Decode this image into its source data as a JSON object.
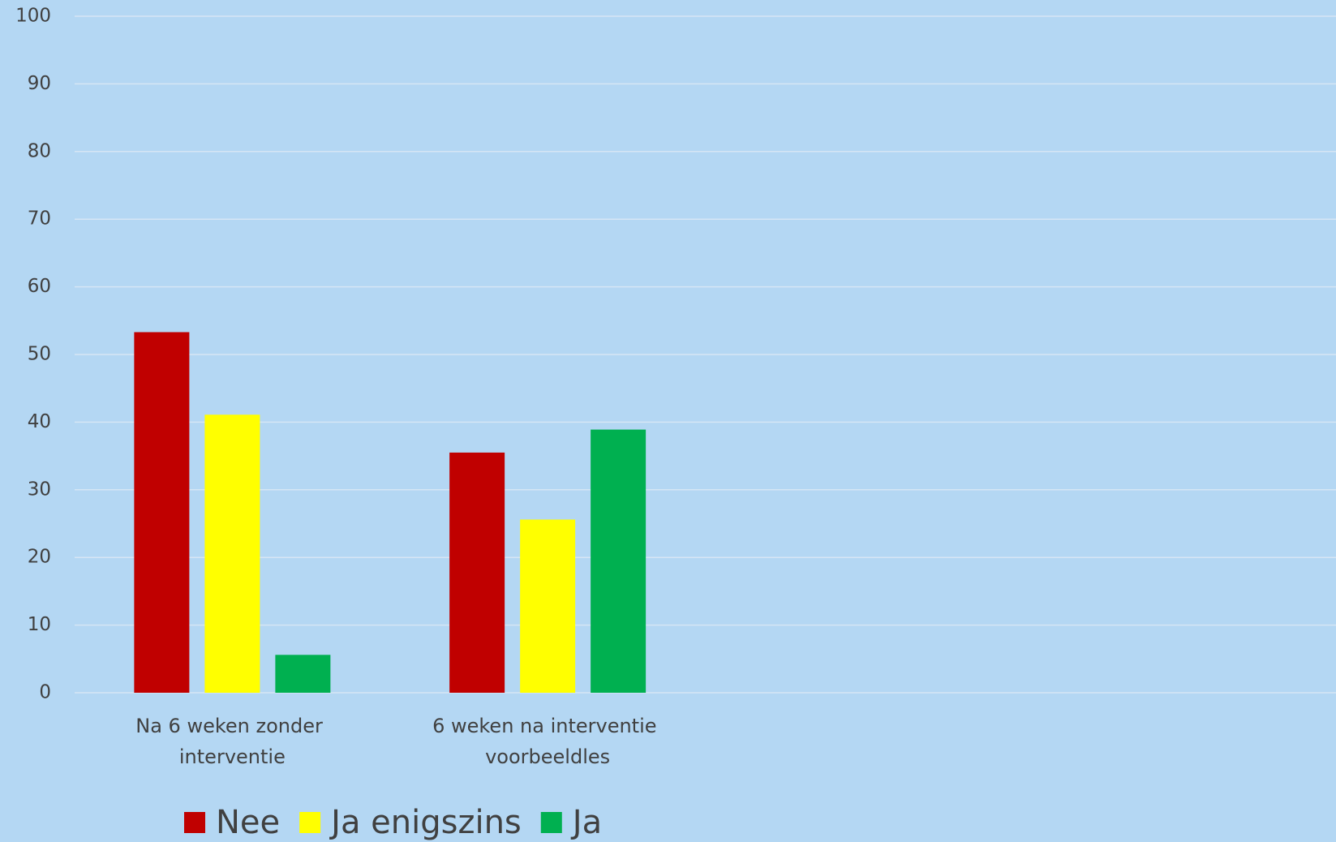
{
  "chart_data": {
    "type": "bar",
    "categories": [
      "Na 6 weken zonder interventie",
      "6 weken na interventie voorbeeldles",
      null,
      null
    ],
    "series": [
      {
        "name": "Nee",
        "color": "#c00000",
        "values": [
          53.3,
          35.5,
          null,
          null
        ]
      },
      {
        "name": "Ja enigszins",
        "color": "#ffff00",
        "values": [
          41.1,
          25.6,
          null,
          null
        ]
      },
      {
        "name": "Ja",
        "color": "#00b050",
        "values": [
          5.6,
          38.9,
          null,
          null
        ]
      }
    ],
    "ylim": [
      0,
      100
    ],
    "yticks": [
      0,
      10,
      20,
      30,
      40,
      50,
      60,
      70,
      80,
      90,
      100
    ],
    "grid": true,
    "legend": "bottom"
  }
}
